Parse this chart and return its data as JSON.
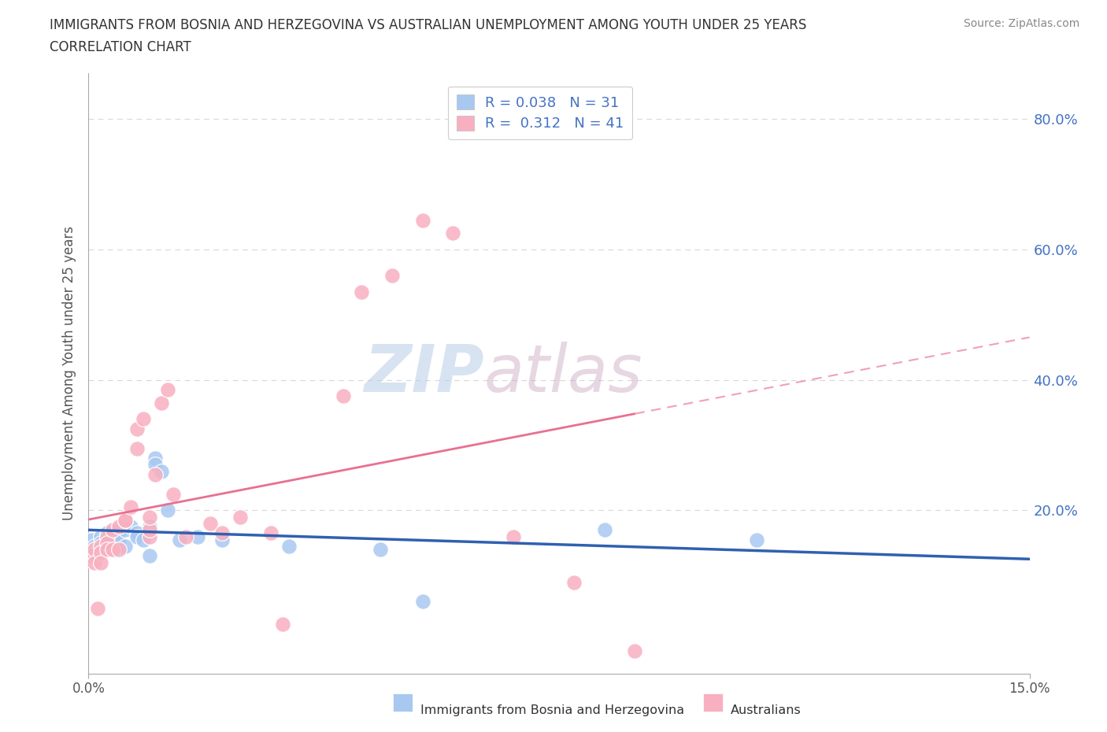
{
  "title_line1": "IMMIGRANTS FROM BOSNIA AND HERZEGOVINA VS AUSTRALIAN UNEMPLOYMENT AMONG YOUTH UNDER 25 YEARS",
  "title_line2": "CORRELATION CHART",
  "source_text": "Source: ZipAtlas.com",
  "ylabel": "Unemployment Among Youth under 25 years",
  "xlim": [
    0.0,
    0.155
  ],
  "ylim": [
    -0.05,
    0.87
  ],
  "ytick_labels_right": [
    "20.0%",
    "40.0%",
    "60.0%",
    "80.0%"
  ],
  "ytick_vals_right": [
    0.2,
    0.4,
    0.6,
    0.8
  ],
  "watermark_zip": "ZIP",
  "watermark_atlas": "atlas",
  "legend1_R": "0.038",
  "legend1_N": "31",
  "legend2_R": "0.312",
  "legend2_N": "41",
  "color_blue": "#a8c8f0",
  "color_pink": "#f8b0c0",
  "color_blue_dark": "#3060b0",
  "color_pink_line": "#e87090",
  "color_pink_dash": "#f0a0b8",
  "background": "#ffffff",
  "grid_color": "#d8d8d8",
  "blue_x": [
    0.0005,
    0.001,
    0.0015,
    0.002,
    0.002,
    0.003,
    0.003,
    0.004,
    0.004,
    0.005,
    0.005,
    0.006,
    0.006,
    0.007,
    0.008,
    0.008,
    0.009,
    0.01,
    0.01,
    0.011,
    0.011,
    0.012,
    0.013,
    0.015,
    0.018,
    0.022,
    0.033,
    0.048,
    0.055,
    0.085,
    0.11
  ],
  "blue_y": [
    0.155,
    0.145,
    0.14,
    0.16,
    0.15,
    0.165,
    0.155,
    0.16,
    0.14,
    0.165,
    0.155,
    0.17,
    0.145,
    0.175,
    0.165,
    0.16,
    0.155,
    0.175,
    0.13,
    0.28,
    0.27,
    0.26,
    0.2,
    0.155,
    0.16,
    0.155,
    0.145,
    0.14,
    0.06,
    0.17,
    0.155
  ],
  "pink_x": [
    0.0005,
    0.001,
    0.001,
    0.0015,
    0.002,
    0.002,
    0.002,
    0.003,
    0.003,
    0.003,
    0.004,
    0.004,
    0.005,
    0.005,
    0.006,
    0.006,
    0.007,
    0.008,
    0.008,
    0.009,
    0.01,
    0.01,
    0.01,
    0.011,
    0.012,
    0.013,
    0.014,
    0.016,
    0.02,
    0.022,
    0.025,
    0.03,
    0.032,
    0.042,
    0.045,
    0.05,
    0.055,
    0.06,
    0.07,
    0.08,
    0.09
  ],
  "pink_y": [
    0.13,
    0.14,
    0.12,
    0.05,
    0.145,
    0.135,
    0.12,
    0.16,
    0.15,
    0.14,
    0.17,
    0.14,
    0.175,
    0.14,
    0.185,
    0.185,
    0.205,
    0.295,
    0.325,
    0.34,
    0.16,
    0.17,
    0.19,
    0.255,
    0.365,
    0.385,
    0.225,
    0.16,
    0.18,
    0.165,
    0.19,
    0.165,
    0.025,
    0.375,
    0.535,
    0.56,
    0.645,
    0.625,
    0.16,
    0.09,
    -0.015
  ]
}
